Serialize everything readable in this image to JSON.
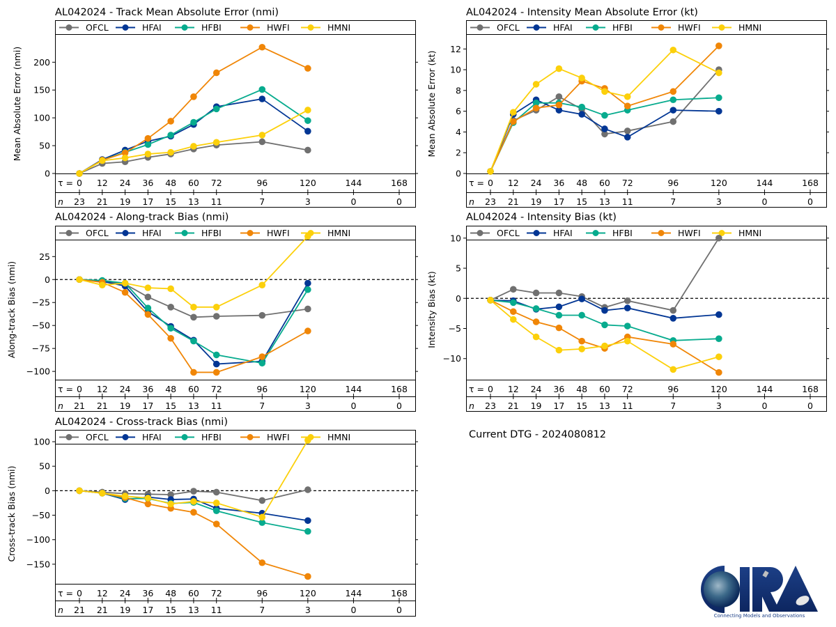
{
  "page": {
    "dtg_text": "Current DTG - 2024080812",
    "logo": {
      "name": "CIRA",
      "tagline": "Connecting Models and Observations"
    }
  },
  "chart_data": [
    {
      "id": "track-mae",
      "type": "line",
      "title": "AL042024 - Track Mean Absolute Error (nmi)",
      "ylabel": "Mean Absolute Error (nmi)",
      "xlabel": "",
      "x": [
        0,
        12,
        24,
        36,
        48,
        60,
        72,
        96,
        120
      ],
      "xticks": [
        0,
        12,
        24,
        36,
        48,
        60,
        72,
        96,
        120,
        144,
        168
      ],
      "n": [
        23,
        21,
        19,
        17,
        15,
        13,
        11,
        7,
        3,
        0,
        0
      ],
      "yticks": [
        0,
        50,
        100,
        150,
        200
      ],
      "ylim": [
        0,
        263
      ],
      "zero_line": false,
      "legend": "top",
      "series": [
        {
          "name": "OFCL",
          "color": "#707070",
          "values": [
            0,
            18,
            21,
            29,
            35,
            44,
            51,
            57,
            42
          ]
        },
        {
          "name": "HFAI",
          "color": "#023694",
          "values": [
            0,
            25,
            42,
            58,
            67,
            88,
            120,
            134,
            76
          ]
        },
        {
          "name": "HFBI",
          "color": "#07ab8e",
          "values": [
            0,
            24,
            38,
            52,
            69,
            92,
            116,
            151,
            95
          ]
        },
        {
          "name": "HWFI",
          "color": "#f08607",
          "values": [
            0,
            24,
            37,
            63,
            94,
            138,
            181,
            227,
            189
          ]
        },
        {
          "name": "HMNI",
          "color": "#fcd00b",
          "values": [
            0,
            23,
            28,
            35,
            38,
            49,
            56,
            69,
            114
          ]
        }
      ]
    },
    {
      "id": "intensity-mae",
      "type": "line",
      "title": "AL042024 - Intensity Mean Absolute Error (kt)",
      "ylabel": "Mean Absolute Error (kt)",
      "xlabel": "",
      "x": [
        0,
        12,
        24,
        36,
        48,
        60,
        72,
        96,
        120
      ],
      "xticks": [
        0,
        12,
        24,
        36,
        48,
        60,
        72,
        96,
        120,
        144,
        168
      ],
      "n": [
        23,
        21,
        19,
        17,
        15,
        13,
        11,
        7,
        3,
        0,
        0
      ],
      "yticks": [
        0,
        2,
        4,
        6,
        8,
        10,
        12
      ],
      "ylim": [
        0,
        14.1
      ],
      "zero_line": false,
      "legend": "top",
      "series": [
        {
          "name": "OFCL",
          "color": "#707070",
          "values": [
            0.2,
            5.1,
            6.1,
            7.4,
            6.2,
            3.8,
            4.1,
            5.0,
            10.0
          ]
        },
        {
          "name": "HFAI",
          "color": "#023694",
          "values": [
            0.2,
            5.7,
            7.1,
            6.1,
            5.7,
            4.3,
            3.5,
            6.1,
            6.0
          ]
        },
        {
          "name": "HFBI",
          "color": "#07ab8e",
          "values": [
            0.2,
            4.9,
            6.8,
            6.8,
            6.4,
            5.6,
            6.1,
            7.1,
            7.3
          ]
        },
        {
          "name": "HWFI",
          "color": "#f08607",
          "values": [
            0.2,
            5.0,
            6.3,
            6.6,
            8.9,
            8.2,
            6.5,
            7.9,
            12.3
          ]
        },
        {
          "name": "HMNI",
          "color": "#fcd00b",
          "values": [
            0.2,
            5.9,
            8.6,
            10.1,
            9.2,
            7.9,
            7.4,
            11.9,
            9.7
          ]
        }
      ]
    },
    {
      "id": "along-track-bias",
      "type": "line",
      "title": "AL042024 - Along-track Bias (nmi)",
      "ylabel": "Along-track Bias (nmi)",
      "xlabel": "",
      "x": [
        0,
        12,
        24,
        36,
        48,
        60,
        72,
        96,
        120
      ],
      "xticks": [
        0,
        12,
        24,
        36,
        48,
        60,
        72,
        96,
        120,
        144,
        168
      ],
      "n": [
        21,
        21,
        19,
        17,
        15,
        13,
        11,
        7,
        3,
        0,
        0
      ],
      "yticks": [
        -100,
        -75,
        -50,
        -25,
        0,
        25
      ],
      "ylim": [
        -109,
        51
      ],
      "zero_line": true,
      "legend": "top",
      "series": [
        {
          "name": "OFCL",
          "color": "#707070",
          "values": [
            0,
            -2,
            -5,
            -19,
            -30,
            -41,
            -40,
            -39,
            -32
          ]
        },
        {
          "name": "HFAI",
          "color": "#023694",
          "values": [
            0,
            -2,
            -7,
            -35,
            -51,
            -66,
            -92,
            -89,
            -4
          ]
        },
        {
          "name": "HFBI",
          "color": "#07ab8e",
          "values": [
            0,
            -1,
            -4,
            -31,
            -53,
            -67,
            -82,
            -91,
            -11
          ]
        },
        {
          "name": "HWFI",
          "color": "#f08607",
          "values": [
            0,
            -3,
            -14,
            -38,
            -64,
            -101,
            -101,
            -84,
            -56
          ]
        },
        {
          "name": "HMNI",
          "color": "#fcd00b",
          "values": [
            0,
            -6,
            -4,
            -9,
            -10,
            -30,
            -30,
            -6,
            47
          ]
        }
      ]
    },
    {
      "id": "intensity-bias",
      "type": "line",
      "title": "AL042024 - Intensity Bias (kt)",
      "ylabel": "Intensity Bias (kt)",
      "xlabel": "",
      "x": [
        0,
        12,
        24,
        36,
        48,
        60,
        72,
        96,
        120
      ],
      "xticks": [
        0,
        12,
        24,
        36,
        48,
        60,
        72,
        96,
        120,
        144,
        168
      ],
      "n": [
        23,
        21,
        19,
        17,
        15,
        13,
        11,
        7,
        3,
        0,
        0
      ],
      "yticks": [
        -10,
        -5,
        0,
        5,
        10
      ],
      "ylim": [
        -13.5,
        10.9
      ],
      "zero_line": true,
      "legend": "top",
      "series": [
        {
          "name": "OFCL",
          "color": "#707070",
          "values": [
            -0.3,
            1.5,
            0.9,
            0.9,
            0.3,
            -1.5,
            -0.4,
            -2.0,
            10.0
          ]
        },
        {
          "name": "HFAI",
          "color": "#023694",
          "values": [
            -0.3,
            -0.4,
            -1.8,
            -1.4,
            -0.1,
            -2.0,
            -1.6,
            -3.3,
            -2.7
          ]
        },
        {
          "name": "HFBI",
          "color": "#07ab8e",
          "values": [
            -0.3,
            -0.7,
            -1.7,
            -2.8,
            -2.8,
            -4.4,
            -4.6,
            -7.0,
            -6.7
          ]
        },
        {
          "name": "HWFI",
          "color": "#f08607",
          "values": [
            -0.3,
            -2.2,
            -3.9,
            -4.9,
            -7.1,
            -8.3,
            -6.4,
            -7.6,
            -12.3
          ]
        },
        {
          "name": "HMNI",
          "color": "#fcd00b",
          "values": [
            -0.3,
            -3.5,
            -6.4,
            -8.6,
            -8.4,
            -7.9,
            -7.1,
            -11.8,
            -9.7
          ]
        }
      ]
    },
    {
      "id": "cross-track-bias",
      "type": "line",
      "title": "AL042024 - Cross-track Bias (nmi)",
      "ylabel": "Cross-track Bias (nmi)",
      "xlabel": "",
      "x": [
        0,
        12,
        24,
        36,
        48,
        60,
        72,
        96,
        120
      ],
      "xticks": [
        0,
        12,
        24,
        36,
        48,
        60,
        72,
        96,
        120,
        144,
        168
      ],
      "n": [
        21,
        21,
        19,
        17,
        15,
        13,
        11,
        7,
        3,
        0,
        0
      ],
      "yticks": [
        -150,
        -100,
        -50,
        0,
        50,
        100
      ],
      "ylim": [
        -190,
        110
      ],
      "zero_line": true,
      "legend": "top",
      "series": [
        {
          "name": "OFCL",
          "color": "#707070",
          "values": [
            0,
            -3,
            -6,
            -7,
            -8,
            -1,
            -3,
            -20,
            2
          ]
        },
        {
          "name": "HFAI",
          "color": "#023694",
          "values": [
            0,
            -5,
            -18,
            -13,
            -18,
            -17,
            -36,
            -46,
            -61
          ]
        },
        {
          "name": "HFBI",
          "color": "#07ab8e",
          "values": [
            0,
            -5,
            -16,
            -16,
            -26,
            -24,
            -41,
            -65,
            -83
          ]
        },
        {
          "name": "HWFI",
          "color": "#f08607",
          "values": [
            0,
            -5,
            -14,
            -27,
            -36,
            -44,
            -68,
            -147,
            -175
          ]
        },
        {
          "name": "HMNI",
          "color": "#fcd00b",
          "values": [
            0,
            -5,
            -11,
            -15,
            -27,
            -22,
            -25,
            -54,
            103
          ]
        }
      ]
    }
  ]
}
